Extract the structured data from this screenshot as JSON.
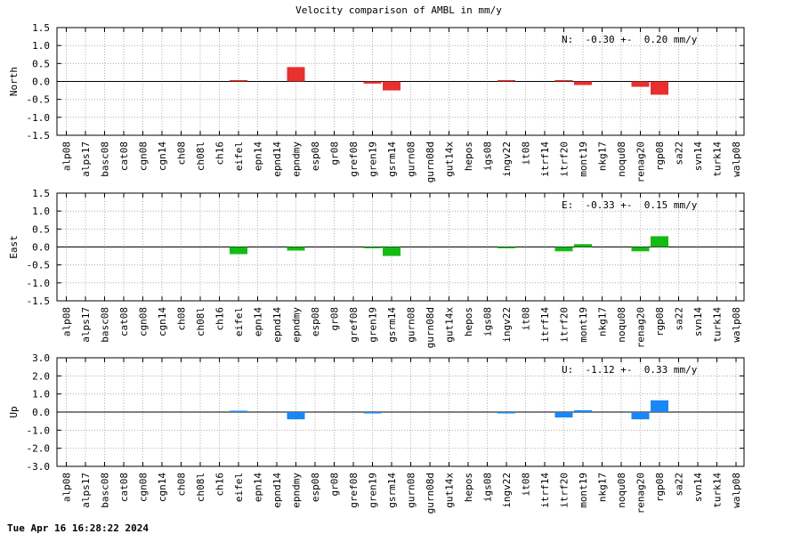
{
  "title": "Velocity comparison of AMBL in mm/y",
  "timestamp": "Tue Apr 16 16:28:22 2024",
  "chart_data": [
    {
      "type": "bar",
      "ylabel": "North",
      "annotation": "N:  -0.30 +-  0.20 mm/y",
      "color": "#e8302e",
      "ylim": [
        -1.5,
        1.5
      ],
      "yticks": [
        1.5,
        1.0,
        0.5,
        0.0,
        -0.5,
        -1.0,
        -1.5
      ],
      "ytick_labels": [
        "1.5",
        "1.0",
        "0.5",
        "0.0",
        "-0.5",
        "-1.0",
        "-1.5"
      ],
      "grid": true,
      "categories": [
        "alp08",
        "alps17",
        "basc08",
        "cat08",
        "cgn08",
        "cgn14",
        "ch08",
        "ch08l",
        "ch16",
        "eifel",
        "epn14",
        "epnd14",
        "epndmy",
        "esp08",
        "gr08",
        "gref08",
        "gren19",
        "gsrm14",
        "gurn08",
        "gurn08d",
        "gut14x",
        "hepos",
        "igs08",
        "ingv22",
        "it08",
        "itrf14",
        "itrf20",
        "mont19",
        "nkg17",
        "noqu08",
        "renag20",
        "rgp08",
        "sa22",
        "svn14",
        "turk14",
        "walp08"
      ],
      "values": [
        0,
        0,
        0,
        0,
        0,
        0,
        0,
        0,
        0,
        0.02,
        0,
        0,
        0.4,
        0,
        0,
        0,
        -0.06,
        -0.25,
        0,
        0,
        0,
        0,
        0,
        0.02,
        0,
        0,
        0.02,
        -0.1,
        0,
        0,
        -0.15,
        -0.37,
        0,
        0,
        0,
        0
      ]
    },
    {
      "type": "bar",
      "ylabel": "East",
      "annotation": "E:  -0.33 +-  0.15 mm/y",
      "color": "#14bb14",
      "ylim": [
        -1.5,
        1.5
      ],
      "yticks": [
        1.5,
        1.0,
        0.5,
        0.0,
        -0.5,
        -1.0,
        -1.5
      ],
      "ytick_labels": [
        "1.5",
        "1.0",
        "0.5",
        "0.0",
        "-0.5",
        "-1.0",
        "-1.5"
      ],
      "grid": true,
      "categories": [
        "alp08",
        "alps17",
        "basc08",
        "cat08",
        "cgn08",
        "cgn14",
        "ch08",
        "ch08l",
        "ch16",
        "eifel",
        "epn14",
        "epnd14",
        "epndmy",
        "esp08",
        "gr08",
        "gref08",
        "gren19",
        "gsrm14",
        "gurn08",
        "gurn08d",
        "gut14x",
        "hepos",
        "igs08",
        "ingv22",
        "it08",
        "itrf14",
        "itrf20",
        "mont19",
        "nkg17",
        "noqu08",
        "renag20",
        "rgp08",
        "sa22",
        "svn14",
        "turk14",
        "walp08"
      ],
      "values": [
        0,
        0,
        0,
        0,
        0,
        0,
        0,
        0,
        0,
        -0.2,
        0,
        0,
        -0.1,
        0,
        0,
        0,
        -0.03,
        -0.25,
        0,
        0,
        0,
        0,
        0,
        -0.03,
        0,
        0,
        -0.12,
        0.08,
        0,
        0,
        -0.12,
        0.3,
        0,
        0,
        0,
        0
      ]
    },
    {
      "type": "bar",
      "ylabel": "Up",
      "annotation": "U:  -1.12 +-  0.33 mm/y",
      "color": "#1a87f5",
      "ylim": [
        -3.0,
        3.0
      ],
      "yticks": [
        3.0,
        2.0,
        1.0,
        0.0,
        -1.0,
        -2.0,
        -3.0
      ],
      "ytick_labels": [
        "3.0",
        "2.0",
        "1.0",
        "0.0",
        "-1.0",
        "-2.0",
        "-3.0"
      ],
      "grid": true,
      "categories": [
        "alp08",
        "alps17",
        "basc08",
        "cat08",
        "cgn08",
        "cgn14",
        "ch08",
        "ch08l",
        "ch16",
        "eifel",
        "epn14",
        "epnd14",
        "epndmy",
        "esp08",
        "gr08",
        "gref08",
        "gren19",
        "gsrm14",
        "gurn08",
        "gurn08d",
        "gut14x",
        "hepos",
        "igs08",
        "ingv22",
        "it08",
        "itrf14",
        "itrf20",
        "mont19",
        "nkg17",
        "noqu08",
        "renag20",
        "rgp08",
        "sa22",
        "svn14",
        "turk14",
        "walp08"
      ],
      "values": [
        0,
        0,
        0,
        0,
        0,
        0,
        0,
        0,
        0,
        0.03,
        0,
        0,
        -0.4,
        0,
        0,
        0,
        -0.05,
        0,
        0,
        0,
        0,
        0,
        0,
        -0.05,
        0,
        0,
        -0.3,
        0.1,
        0,
        0,
        -0.4,
        0.65,
        0,
        0,
        0,
        0
      ]
    }
  ]
}
